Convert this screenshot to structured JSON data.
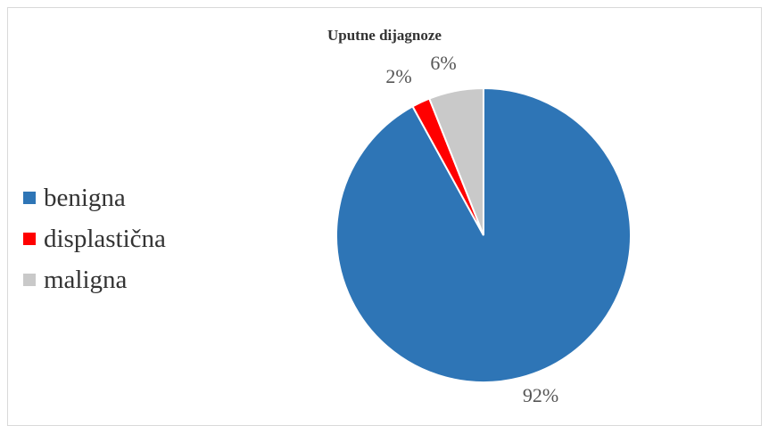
{
  "chart_data": {
    "type": "pie",
    "title": "Uputne dijagnoze",
    "categories": [
      "benigna",
      "displastična",
      "maligna"
    ],
    "values": [
      92,
      2,
      6
    ],
    "value_labels": [
      "92%",
      "2%",
      "6%"
    ],
    "colors": [
      "#2E75B6",
      "#FF0000",
      "#C9C9C9"
    ],
    "start_angle_deg": 0,
    "direction": "clockwise",
    "legend_position": "left"
  }
}
